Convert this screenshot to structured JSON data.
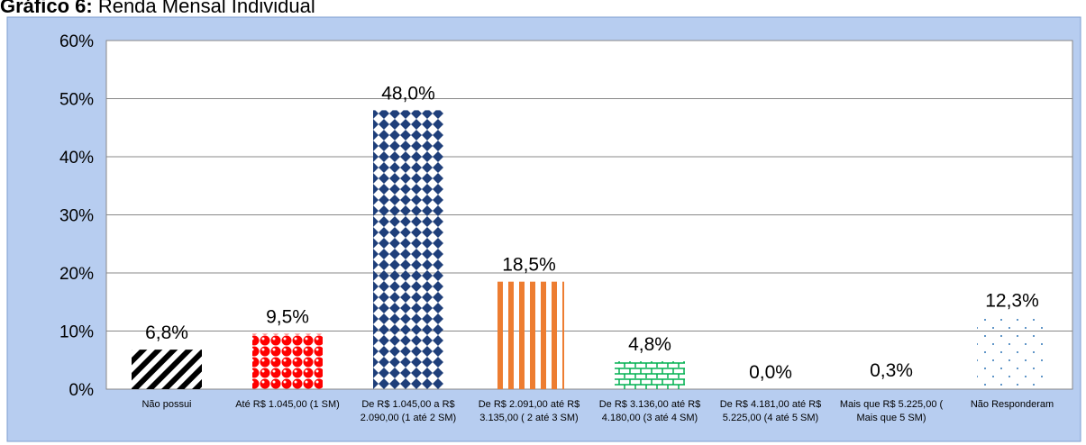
{
  "chart_data": {
    "type": "bar",
    "title_label": "Gráfico 6:",
    "title": "Renda Mensal Individual",
    "categories": [
      "Não possui",
      "Até R$ 1.045,00 (1 SM)",
      "De R$ 1.045,00  a R$ 2.090,00 (1 até 2 SM)",
      "De R$ 2.091,00 até R$ 3.135,00 ( 2 até 3 SM)",
      "De R$ 3.136,00 até R$ 4.180,00 (3 até 4 SM)",
      "De R$ 4.181,00 até R$ 5.225,00 (4 até 5 SM)",
      "Mais que R$ 5.225,00 ( Mais que 5 SM)",
      "Não Responderam"
    ],
    "values": [
      6.8,
      9.5,
      48.0,
      18.5,
      4.8,
      0.0,
      0.3,
      12.3
    ],
    "value_labels": [
      "6,8%",
      "9,5%",
      "48,0%",
      "18,5%",
      "4,8%",
      "0,0%",
      "0,3%",
      "12,3%"
    ],
    "colors": [
      "#000000",
      "#ff0000",
      "#1f3f7a",
      "#ed7d31",
      "#00b050",
      "#7f7f7f",
      "#7f7f7f",
      "#2e75b6"
    ],
    "ylim": [
      0,
      60
    ],
    "yticks": [
      {
        "value": 0,
        "label": "0%"
      },
      {
        "value": 10,
        "label": "10%"
      },
      {
        "value": 20,
        "label": "20%"
      },
      {
        "value": 30,
        "label": "30%"
      },
      {
        "value": 40,
        "label": "40%"
      },
      {
        "value": 50,
        "label": "50%"
      },
      {
        "value": 60,
        "label": "60%"
      }
    ],
    "grid": true
  }
}
